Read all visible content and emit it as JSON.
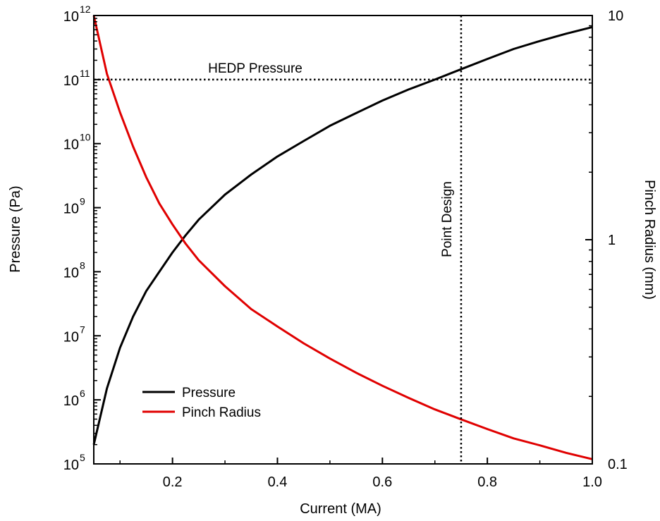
{
  "chart_data": {
    "type": "line",
    "xlabel": "Current (MA)",
    "ylabel_left": "Pressure (Pa)",
    "ylabel_right": "Pinch Radius (mm)",
    "xlim": [
      0.05,
      1.0
    ],
    "x_ticks": [
      0.2,
      0.4,
      0.6,
      0.8,
      1.0
    ],
    "x_tick_labels": [
      "0.2",
      "0.4",
      "0.6",
      "0.8",
      "1.0"
    ],
    "y_left": {
      "scale": "log",
      "range": [
        100000,
        1000000000000
      ],
      "tick_bases": [
        "10",
        "10",
        "10",
        "10",
        "10",
        "10",
        "10",
        "10"
      ],
      "tick_exponents": [
        "5",
        "6",
        "7",
        "8",
        "9",
        "10",
        "11",
        "12"
      ]
    },
    "y_right": {
      "scale": "log",
      "range": [
        0.1,
        10
      ],
      "tick_labels": [
        "0.1",
        "1",
        "10"
      ]
    },
    "series": [
      {
        "name": "Pressure",
        "axis": "left",
        "color": "#000000",
        "x": [
          0.05,
          0.075,
          0.1,
          0.125,
          0.15,
          0.175,
          0.2,
          0.225,
          0.25,
          0.3,
          0.35,
          0.4,
          0.45,
          0.5,
          0.55,
          0.6,
          0.65,
          0.7,
          0.75,
          0.8,
          0.85,
          0.9,
          0.95,
          1.0
        ],
        "values": [
          200000,
          1500000,
          6500000,
          20000000,
          50000000,
          100000000,
          200000000,
          370000000,
          650000000,
          1600000000,
          3300000000,
          6300000000,
          11000000000,
          19000000000,
          30000000000,
          47000000000,
          70000000000,
          100000000000,
          145000000000,
          210000000000,
          300000000000,
          400000000000,
          520000000000,
          660000000000
        ]
      },
      {
        "name": "Pinch Radius",
        "axis": "right",
        "color": "#e00000",
        "x": [
          0.05,
          0.075,
          0.1,
          0.125,
          0.15,
          0.175,
          0.2,
          0.225,
          0.25,
          0.3,
          0.35,
          0.4,
          0.45,
          0.5,
          0.55,
          0.6,
          0.65,
          0.7,
          0.75,
          0.8,
          0.85,
          0.9,
          0.95,
          1.0
        ],
        "values": [
          10,
          5.5,
          3.7,
          2.6,
          1.9,
          1.45,
          1.17,
          0.96,
          0.81,
          0.62,
          0.49,
          0.41,
          0.345,
          0.295,
          0.255,
          0.223,
          0.197,
          0.175,
          0.158,
          0.143,
          0.13,
          0.121,
          0.112,
          0.105
        ]
      }
    ],
    "reference_lines": [
      {
        "orientation": "horizontal",
        "axis": "left",
        "value": 100000000000,
        "style": "dotted",
        "label": "HEDP Pressure"
      },
      {
        "orientation": "vertical",
        "value": 0.75,
        "style": "dotted",
        "label": "Point Design"
      }
    ],
    "legend": {
      "placement": "bottom-left"
    },
    "grid": false
  }
}
